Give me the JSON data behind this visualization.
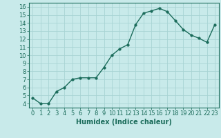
{
  "x": [
    0,
    1,
    2,
    3,
    4,
    5,
    6,
    7,
    8,
    9,
    10,
    11,
    12,
    13,
    14,
    15,
    16,
    17,
    18,
    19,
    20,
    21,
    22,
    23
  ],
  "y": [
    4.7,
    4.0,
    4.0,
    5.5,
    6.0,
    7.0,
    7.2,
    7.2,
    7.2,
    8.5,
    10.0,
    10.8,
    11.3,
    13.8,
    15.2,
    15.5,
    15.8,
    15.4,
    14.3,
    13.2,
    12.5,
    12.1,
    11.6,
    13.8
  ],
  "line_color": "#1a6b5a",
  "marker": "o",
  "markersize": 2.5,
  "linewidth": 1.0,
  "bg_color": "#c8eaea",
  "grid_color": "#a8d4d4",
  "xlabel": "Humidex (Indice chaleur)",
  "xlabel_fontsize": 7,
  "tick_fontsize": 6,
  "ylim": [
    3.5,
    16.5
  ],
  "xlim": [
    -0.5,
    23.5
  ],
  "yticks": [
    4,
    5,
    6,
    7,
    8,
    9,
    10,
    11,
    12,
    13,
    14,
    15,
    16
  ],
  "xticks": [
    0,
    1,
    2,
    3,
    4,
    5,
    6,
    7,
    8,
    9,
    10,
    11,
    12,
    13,
    14,
    15,
    16,
    17,
    18,
    19,
    20,
    21,
    22,
    23
  ]
}
